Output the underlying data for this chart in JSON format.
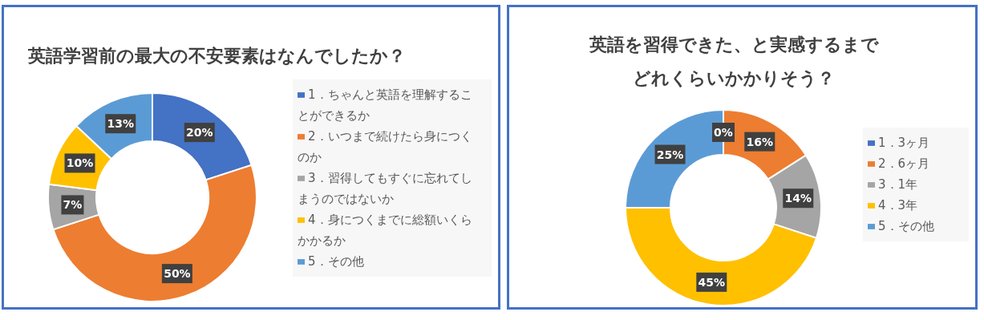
{
  "chart_data": [
    {
      "type": "donut",
      "title": "英語学習前の最大の不安要素はなんでしたか？",
      "categories": [
        "1．ちゃんと英語を理解することができるか",
        "2．いつまで続けたら身につくのか",
        "3．習得してもすぐに忘れてしまうのではないか",
        "4．身につくまでに総額いくらかかるか",
        "5．その他"
      ],
      "values": [
        20,
        50,
        7,
        10,
        13
      ],
      "value_labels": [
        "20%",
        "50%",
        "7%",
        "10%",
        "13%"
      ],
      "colors": [
        "#4472c4",
        "#ed7d31",
        "#a5a5a5",
        "#ffc000",
        "#5b9bd5"
      ],
      "legend": "right"
    },
    {
      "type": "donut",
      "title": "英語を習得できた、と実感するまでどれくらいかかりそう？",
      "categories": [
        "1．3ヶ月",
        "2．6ヶ月",
        "3．1年",
        "4．3年",
        "5．その他"
      ],
      "values": [
        0,
        16,
        14,
        45,
        25
      ],
      "value_labels": [
        "0%",
        "16%",
        "14%",
        "45%",
        "25%"
      ],
      "colors": [
        "#4472c4",
        "#ed7d31",
        "#a5a5a5",
        "#ffc000",
        "#5b9bd5"
      ],
      "legend": "right"
    }
  ]
}
